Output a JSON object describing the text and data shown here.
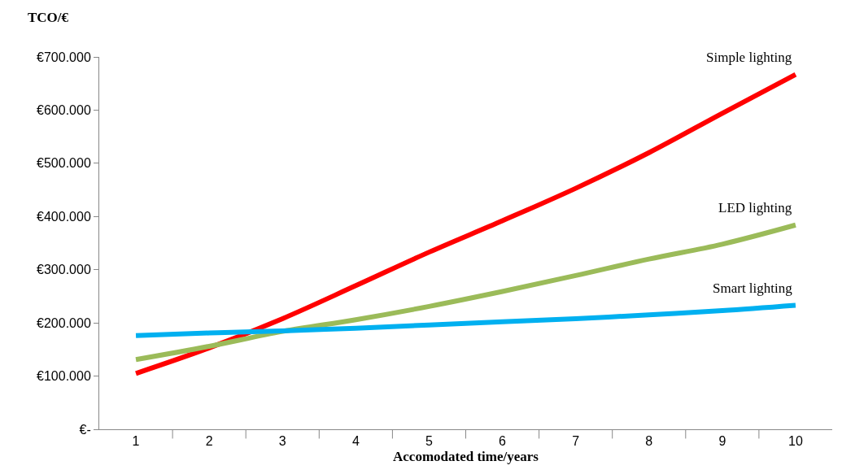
{
  "chart_data": {
    "type": "line",
    "ylabel": "TCO/€",
    "xlabel": "Accomodated time/years",
    "categories": [
      "1",
      "2",
      "3",
      "4",
      "5",
      "6",
      "7",
      "8",
      "9",
      "10"
    ],
    "series": [
      {
        "name": "Simple lighting",
        "color": "#ff0000",
        "values": [
          105000,
          153000,
          208000,
          270000,
          333000,
          392000,
          453000,
          520000,
          594000,
          667000
        ]
      },
      {
        "name": "LED lighting",
        "color": "#9bbb59",
        "values": [
          131000,
          156000,
          184000,
          206000,
          231000,
          259000,
          289000,
          320000,
          348000,
          384000
        ]
      },
      {
        "name": "Smart lighting",
        "color": "#00b0f0",
        "values": [
          176000,
          181000,
          185000,
          190000,
          196000,
          202000,
          208000,
          215000,
          223000,
          233000
        ]
      }
    ],
    "ylim": [
      0,
      700000
    ],
    "yticks": [
      {
        "value": 0,
        "label": "€-"
      },
      {
        "value": 100000,
        "label": "€100.000"
      },
      {
        "value": 200000,
        "label": "€200.000"
      },
      {
        "value": 300000,
        "label": "€300.000"
      },
      {
        "value": 400000,
        "label": "€400.000"
      },
      {
        "value": 500000,
        "label": "€500.000"
      },
      {
        "value": 600000,
        "label": "€600.000"
      },
      {
        "value": 700000,
        "label": "€700.000"
      }
    ],
    "legend": false,
    "marker": "none",
    "line_style": "solid"
  }
}
